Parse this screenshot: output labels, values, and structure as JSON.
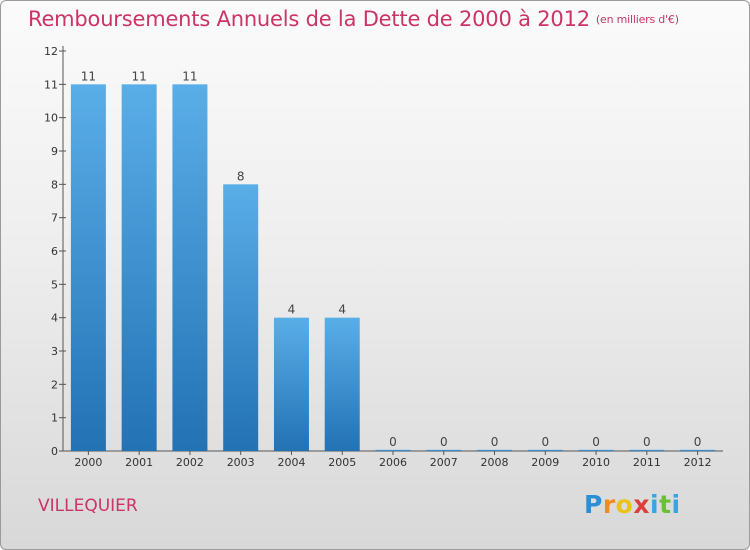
{
  "title": "Remboursements Annuels de la Dette de 2000 à 2012",
  "unit_note": "(en milliers d'€)",
  "commune": "VILLEQUIER",
  "logo": {
    "letters": [
      "P",
      "r",
      "o",
      "x",
      "i",
      "t",
      "i"
    ],
    "colors": [
      "#2b8fd6",
      "#f28a1c",
      "#e8c31c",
      "#e03c3c",
      "#3aa3e0",
      "#6cbf3a",
      "#3aa3e0"
    ]
  },
  "colors": {
    "title": "#cc3366",
    "bar_light": "#5aaee8",
    "bar_dark": "#2272b4"
  },
  "chart_data": {
    "type": "bar",
    "title": "Remboursements Annuels de la Dette de 2000 à 2012",
    "xlabel": "",
    "ylabel": "",
    "categories": [
      "2000",
      "2001",
      "2002",
      "2003",
      "2004",
      "2005",
      "2006",
      "2007",
      "2008",
      "2009",
      "2010",
      "2011",
      "2012"
    ],
    "values": [
      11,
      11,
      11,
      8,
      4,
      4,
      0,
      0,
      0,
      0,
      0,
      0,
      0
    ],
    "data_labels": [
      "11",
      "11",
      "11",
      "8",
      "4",
      "4",
      "0",
      "0",
      "0",
      "0",
      "0",
      "0",
      "0"
    ],
    "ylim": [
      0,
      12
    ],
    "yticks": [
      0,
      1,
      2,
      3,
      4,
      5,
      6,
      7,
      8,
      9,
      10,
      11,
      12
    ],
    "ytick_labels": [
      "0",
      "1",
      "2",
      "3",
      "4",
      "5",
      "6",
      "7",
      "8",
      "9",
      "10",
      "11",
      "12"
    ],
    "grid": false,
    "legend": "none"
  }
}
